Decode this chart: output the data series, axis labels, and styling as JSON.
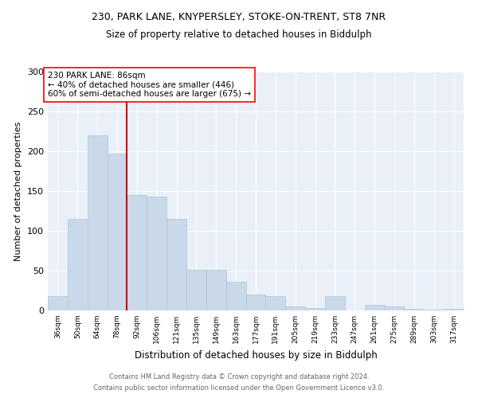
{
  "title1": "230, PARK LANE, KNYPERSLEY, STOKE-ON-TRENT, ST8 7NR",
  "title2": "Size of property relative to detached houses in Biddulph",
  "xlabel": "Distribution of detached houses by size in Biddulph",
  "ylabel": "Number of detached properties",
  "footnote1": "Contains HM Land Registry data © Crown copyright and database right 2024.",
  "footnote2": "Contains public sector information licensed under the Open Government Licence v3.0.",
  "annotation_line1": "230 PARK LANE: 86sqm",
  "annotation_line2": "← 40% of detached houses are smaller (446)",
  "annotation_line3": "60% of semi-detached houses are larger (675) →",
  "bar_color": "#c9d9ea",
  "bar_edge_color": "#b0c4d8",
  "vline_color": "#cc0000",
  "vline_x_idx": 3.5,
  "categories": [
    "36sqm",
    "50sqm",
    "64sqm",
    "78sqm",
    "92sqm",
    "106sqm",
    "121sqm",
    "135sqm",
    "149sqm",
    "163sqm",
    "177sqm",
    "191sqm",
    "205sqm",
    "219sqm",
    "233sqm",
    "247sqm",
    "261sqm",
    "275sqm",
    "289sqm",
    "303sqm",
    "317sqm"
  ],
  "values": [
    18,
    115,
    220,
    197,
    145,
    143,
    115,
    51,
    51,
    36,
    20,
    18,
    5,
    3,
    18,
    0,
    7,
    5,
    2,
    1,
    2
  ],
  "ylim": [
    0,
    300
  ],
  "yticks": [
    0,
    50,
    100,
    150,
    200,
    250,
    300
  ],
  "bg_color": "#eaf0f8",
  "fig_bg_color": "#ffffff",
  "grid_color": "#ffffff",
  "title1_fontsize": 9,
  "title2_fontsize": 8.5,
  "footnote_fontsize": 6,
  "footnote_color": "#666666",
  "annot_fontsize": 7.5,
  "ylabel_fontsize": 8,
  "xlabel_fontsize": 8.5,
  "tick_fontsize": 6.5,
  "ytick_fontsize": 8
}
